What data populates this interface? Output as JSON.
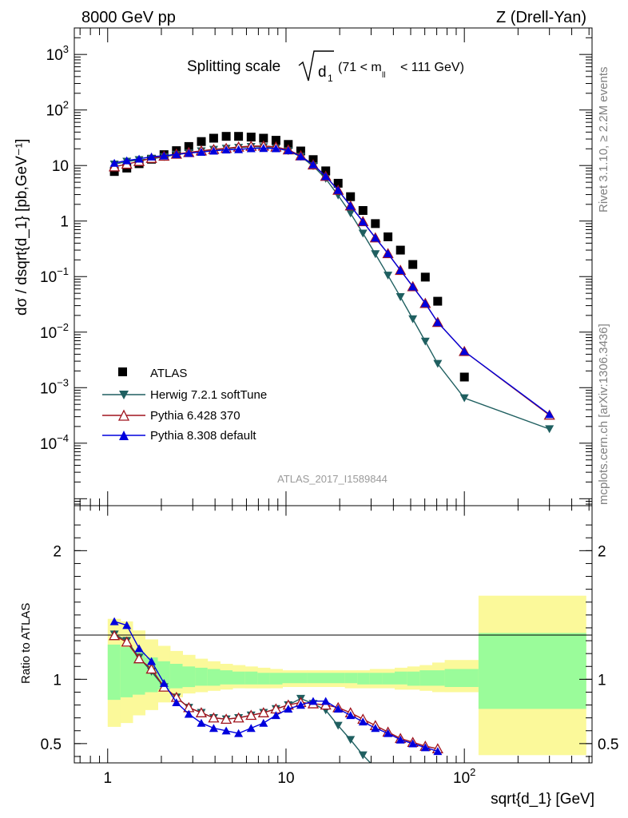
{
  "header": {
    "left": "8000 GeV pp",
    "right": "Z (Drell-Yan)",
    "watermark": "ATLAS_2017_I1589844",
    "side_top": "Rivet 3.1.10, ≥ 2.2M events",
    "side_bottom": "mcplots.cern.ch [arXiv:1306.3436]"
  },
  "colors": {
    "atlas": "#000000",
    "herwig": "#1f5f60",
    "pythia6": "#a0141e",
    "pythia8": "#0000dd",
    "band_yellow": "#fbf99a",
    "band_green": "#9afc9a"
  },
  "chart_data": [
    {
      "type": "scatter",
      "title": {
        "main": "Splitting scale",
        "root": "d",
        "root_sub": "1",
        "cut_open": "(71 < m",
        "cut_sub": "ll",
        "cut_close": "< 111 GeV)"
      },
      "ylabel": "dσ / dsqrt{d_1} [pb,GeV⁻¹]",
      "y_scale": "log",
      "x_scale": "log",
      "xlim": [
        0.65,
        520
      ],
      "ylim": [
        7.5e-06,
        3000
      ],
      "y_ticks": [
        {
          "value": 1000,
          "base": "10",
          "exp": "3"
        },
        {
          "value": 100,
          "base": "10",
          "exp": "2"
        },
        {
          "value": 10,
          "base": "10",
          "exp": ""
        },
        {
          "value": 1,
          "base": "1",
          "exp": ""
        },
        {
          "value": 0.1,
          "base": "10",
          "exp": "−1"
        },
        {
          "value": 0.01,
          "base": "10",
          "exp": "−2"
        },
        {
          "value": 0.001,
          "base": "10",
          "exp": "−3"
        },
        {
          "value": 0.0001,
          "base": "10",
          "exp": "−4"
        }
      ],
      "legend_position": "bottom-left",
      "series": [
        {
          "name": "ATLAS",
          "marker": "square",
          "x": [
            1.09,
            1.28,
            1.5,
            1.76,
            2.07,
            2.43,
            2.85,
            3.35,
            3.93,
            4.62,
            5.42,
            6.37,
            7.48,
            8.78,
            10.3,
            12.1,
            14.2,
            16.7,
            19.6,
            23.0,
            27.0,
            31.7,
            37.3,
            43.8,
            51.4,
            60.4,
            70.9,
            100.0,
            300.0
          ],
          "values": [
            7.8,
            9.0,
            10.8,
            13.0,
            15.7,
            18.5,
            22.0,
            27.0,
            31.0,
            33.5,
            33.5,
            32.5,
            31.0,
            28.5,
            24.0,
            18.3,
            12.8,
            8.0,
            4.8,
            2.75,
            1.55,
            0.9,
            0.52,
            0.3,
            0.165,
            0.098,
            0.036,
            0.00155,
            0
          ]
        },
        {
          "name": "Herwig 7.2.1 softTune",
          "marker": "triangle-down",
          "x": [
            1.09,
            1.28,
            1.5,
            1.76,
            2.07,
            2.43,
            2.85,
            3.35,
            3.93,
            4.62,
            5.42,
            6.37,
            7.48,
            8.78,
            10.3,
            12.1,
            14.2,
            16.7,
            19.6,
            23.0,
            27.0,
            31.7,
            37.3,
            43.8,
            51.4,
            60.4,
            70.9,
            100.0,
            300.0
          ],
          "values": [
            10.5,
            11.8,
            12.6,
            13.2,
            14.3,
            15.8,
            16.8,
            18.2,
            19.3,
            20.2,
            21.0,
            21.8,
            21.5,
            20.5,
            18.3,
            14.5,
            9.8,
            5.8,
            2.9,
            1.38,
            0.6,
            0.255,
            0.105,
            0.043,
            0.0172,
            0.0068,
            0.0027,
            0.00065,
            0.00018
          ]
        },
        {
          "name": "Pythia 6.428 370",
          "marker": "triangle-up-open",
          "x": [
            1.09,
            1.28,
            1.5,
            1.76,
            2.07,
            2.43,
            2.85,
            3.35,
            3.93,
            4.62,
            5.42,
            6.37,
            7.48,
            8.78,
            10.3,
            12.1,
            14.2,
            16.7,
            19.6,
            23.0,
            27.0,
            31.7,
            37.3,
            43.8,
            51.4,
            60.4,
            70.9,
            100.0,
            300.0
          ],
          "values": [
            9.5,
            10.6,
            11.9,
            13.5,
            14.8,
            16.1,
            17.2,
            18.4,
            19.5,
            20.4,
            21.6,
            22.3,
            22.5,
            21.6,
            19.2,
            15.0,
            10.3,
            6.4,
            3.6,
            1.88,
            0.98,
            0.5,
            0.26,
            0.13,
            0.066,
            0.033,
            0.015,
            0.0045,
            0.00032
          ]
        },
        {
          "name": "Pythia 8.308 default",
          "marker": "triangle-up",
          "x": [
            1.09,
            1.28,
            1.5,
            1.76,
            2.07,
            2.43,
            2.85,
            3.35,
            3.93,
            4.62,
            5.42,
            6.37,
            7.48,
            8.78,
            10.3,
            12.1,
            14.2,
            16.7,
            19.6,
            23.0,
            27.0,
            31.7,
            37.3,
            43.8,
            51.4,
            60.4,
            70.9,
            100.0,
            300.0
          ],
          "values": [
            11.1,
            12.3,
            13.2,
            14.4,
            15.0,
            15.9,
            16.7,
            17.5,
            18.4,
            19.2,
            19.5,
            20.3,
            20.5,
            20.3,
            18.7,
            14.6,
            10.4,
            6.4,
            3.6,
            1.88,
            0.97,
            0.5,
            0.26,
            0.13,
            0.066,
            0.033,
            0.015,
            0.0045,
            0.00033
          ]
        }
      ]
    },
    {
      "type": "line",
      "ylabel": "Ratio to ATLAS",
      "xlabel": "sqrt{d_1} [GeV]",
      "x_scale": "log",
      "xlim": [
        0.65,
        520
      ],
      "ylim": [
        0.35,
        2.35
      ],
      "y_ticks": [
        "0.5",
        "1",
        "2"
      ],
      "x_ticks": [
        {
          "value": 1,
          "base": "1",
          "exp": ""
        },
        {
          "value": 10,
          "base": "10",
          "exp": ""
        },
        {
          "value": 100,
          "base": "10",
          "exp": "2"
        }
      ],
      "bands": {
        "edges": [
          1.0,
          1.18,
          1.38,
          1.62,
          1.91,
          2.24,
          2.63,
          3.09,
          3.63,
          4.27,
          5.01,
          5.89,
          6.92,
          8.13,
          9.55,
          11.2,
          13.2,
          15.5,
          18.2,
          21.4,
          25.1,
          29.5,
          34.7,
          40.7,
          47.9,
          56.2,
          66.1,
          77.6,
          120.0,
          480.0
        ],
        "yellow_lo": [
          0.63,
          0.66,
          0.72,
          0.76,
          0.82,
          0.86,
          0.89,
          0.9,
          0.91,
          0.92,
          0.93,
          0.93,
          0.93,
          0.93,
          0.94,
          0.94,
          0.94,
          0.94,
          0.94,
          0.93,
          0.93,
          0.93,
          0.93,
          0.92,
          0.92,
          0.91,
          0.9,
          0.9,
          0.41
        ],
        "yellow_hi": [
          1.47,
          1.45,
          1.38,
          1.31,
          1.26,
          1.22,
          1.19,
          1.16,
          1.14,
          1.12,
          1.11,
          1.1,
          1.09,
          1.08,
          1.07,
          1.07,
          1.07,
          1.07,
          1.07,
          1.07,
          1.07,
          1.08,
          1.08,
          1.09,
          1.1,
          1.11,
          1.13,
          1.15,
          1.65
        ],
        "green_lo": [
          0.84,
          0.86,
          0.88,
          0.9,
          0.92,
          0.93,
          0.94,
          0.95,
          0.95,
          0.96,
          0.96,
          0.96,
          0.96,
          0.96,
          0.97,
          0.97,
          0.97,
          0.97,
          0.97,
          0.97,
          0.96,
          0.96,
          0.96,
          0.96,
          0.95,
          0.95,
          0.95,
          0.94,
          0.77
        ],
        "green_hi": [
          1.27,
          1.25,
          1.21,
          1.17,
          1.14,
          1.12,
          1.1,
          1.09,
          1.08,
          1.07,
          1.06,
          1.06,
          1.05,
          1.05,
          1.05,
          1.05,
          1.05,
          1.05,
          1.05,
          1.05,
          1.05,
          1.05,
          1.05,
          1.06,
          1.06,
          1.07,
          1.07,
          1.08,
          1.36
        ]
      },
      "series": [
        {
          "name": "Herwig 7.2.1 softTune",
          "x": [
            1.09,
            1.28,
            1.5,
            1.76,
            2.07,
            2.43,
            2.85,
            3.35,
            3.93,
            4.62,
            5.42,
            6.37,
            7.48,
            8.78,
            10.3,
            12.1,
            14.2,
            16.7,
            19.6,
            23.0,
            27.0,
            31.7
          ],
          "values": [
            1.35,
            1.3,
            1.17,
            1.06,
            0.94,
            0.86,
            0.78,
            0.74,
            0.7,
            0.69,
            0.7,
            0.72,
            0.74,
            0.77,
            0.8,
            0.85,
            0.81,
            0.76,
            0.64,
            0.53,
            0.41,
            0.31
          ]
        },
        {
          "name": "Pythia 6.428 370",
          "x": [
            1.09,
            1.28,
            1.5,
            1.76,
            2.07,
            2.43,
            2.85,
            3.35,
            3.93,
            4.62,
            5.42,
            6.37,
            7.48,
            8.78,
            10.3,
            12.1,
            14.2,
            16.7,
            19.6,
            23.0,
            27.0,
            31.7,
            37.3,
            43.8,
            51.4,
            60.4,
            70.9
          ],
          "values": [
            1.34,
            1.29,
            1.16,
            1.08,
            0.94,
            0.86,
            0.78,
            0.74,
            0.7,
            0.69,
            0.7,
            0.72,
            0.74,
            0.77,
            0.8,
            0.82,
            0.81,
            0.8,
            0.78,
            0.74,
            0.69,
            0.64,
            0.59,
            0.54,
            0.51,
            0.48,
            0.46
          ]
        },
        {
          "name": "Pythia 8.308 default",
          "x": [
            1.09,
            1.28,
            1.5,
            1.76,
            2.07,
            2.43,
            2.85,
            3.35,
            3.93,
            4.62,
            5.42,
            6.37,
            7.48,
            8.78,
            10.3,
            12.1,
            14.2,
            16.7,
            19.6,
            23.0,
            27.0,
            31.7,
            37.3,
            43.8,
            51.4,
            60.4,
            70.9
          ],
          "values": [
            1.45,
            1.42,
            1.24,
            1.14,
            0.97,
            0.82,
            0.73,
            0.66,
            0.62,
            0.6,
            0.58,
            0.62,
            0.66,
            0.72,
            0.77,
            0.8,
            0.83,
            0.83,
            0.77,
            0.72,
            0.67,
            0.62,
            0.58,
            0.53,
            0.5,
            0.47,
            0.44
          ]
        }
      ]
    }
  ]
}
